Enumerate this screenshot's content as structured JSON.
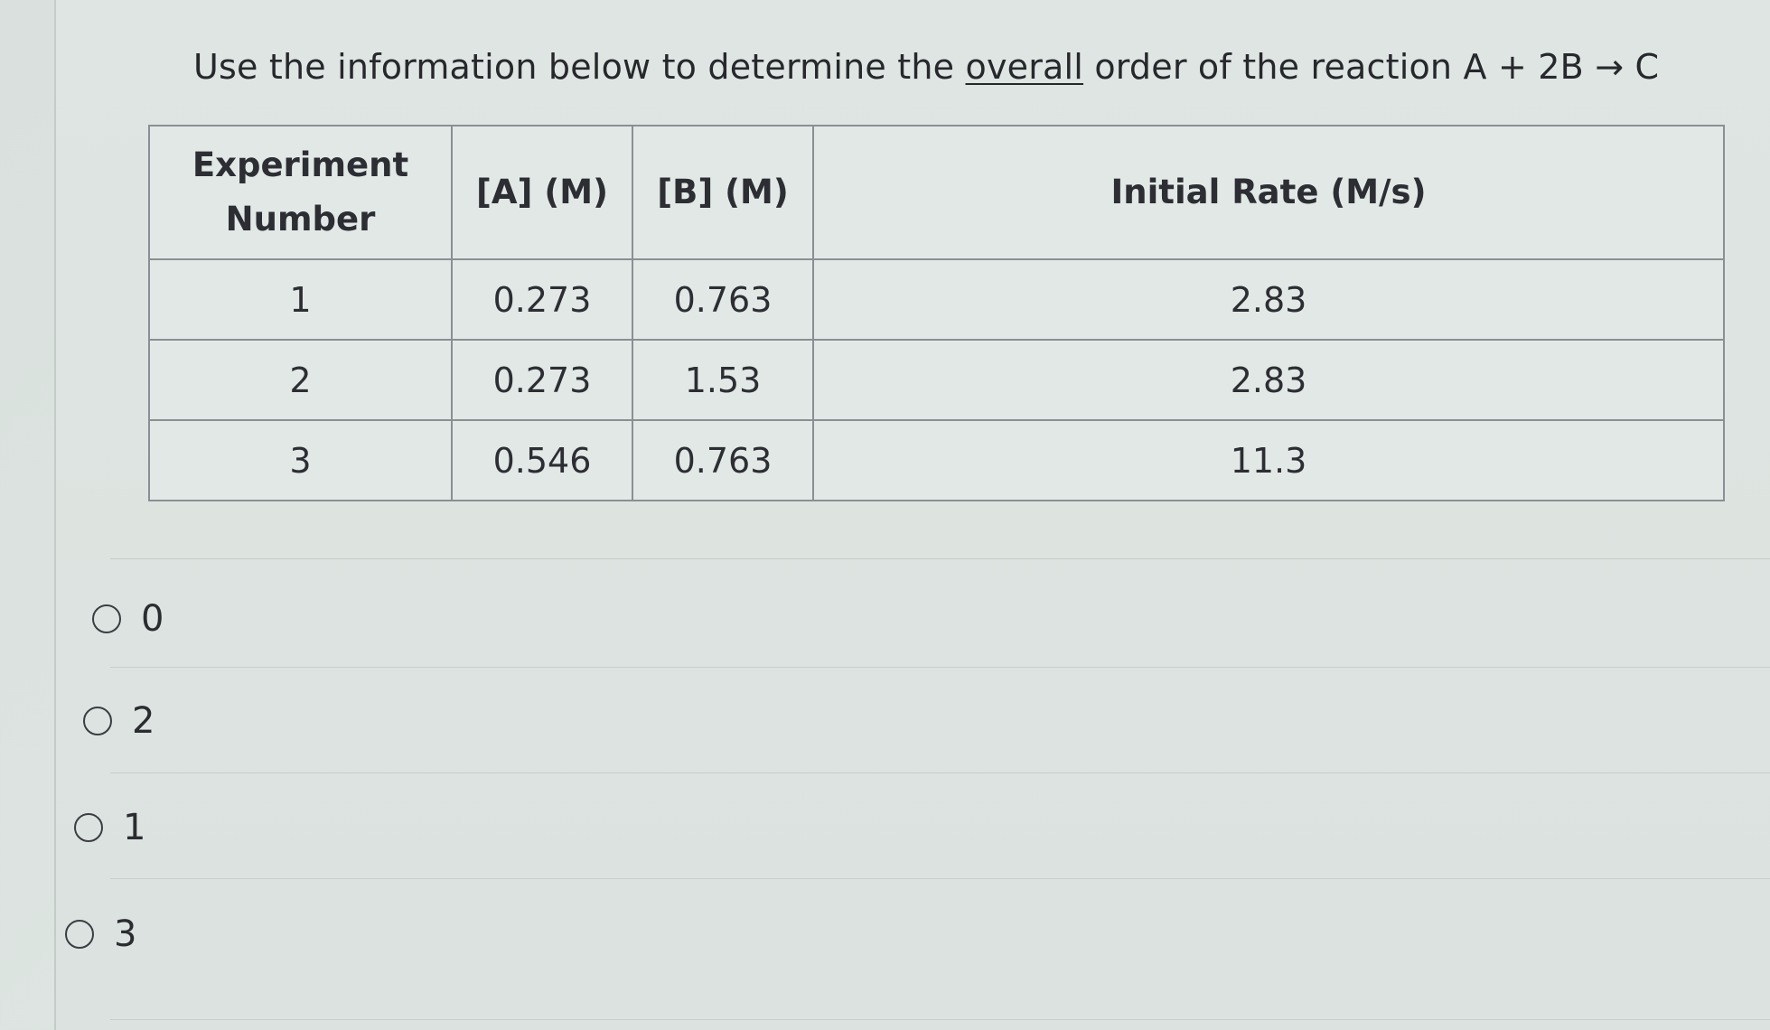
{
  "question": {
    "before": "Use the information below to determine the ",
    "emphasis": "overall",
    "after": " order of the reaction A + 2B → C"
  },
  "table": {
    "headers": [
      "Experiment Number",
      "[A] (M)",
      "[B] (M)",
      "Initial Rate (M/s)"
    ],
    "rows": [
      [
        "1",
        "0.273",
        "0.763",
        "2.83"
      ],
      [
        "2",
        "0.273",
        "1.53",
        "2.83"
      ],
      [
        "3",
        "0.546",
        "0.763",
        "11.3"
      ]
    ]
  },
  "options": [
    {
      "label": "0"
    },
    {
      "label": "2"
    },
    {
      "label": "1"
    },
    {
      "label": "3"
    }
  ]
}
